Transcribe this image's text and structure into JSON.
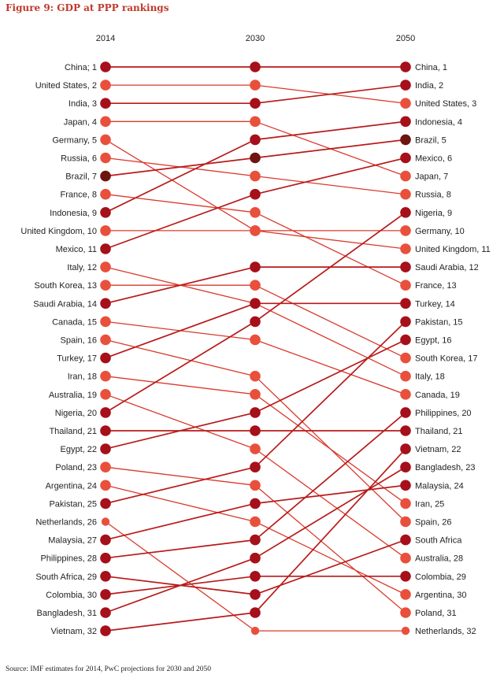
{
  "title": "Figure 9: GDP at PPP rankings",
  "source": "Source: IMF estimates for 2014, PwC projections for 2030 and 2050",
  "colors": {
    "title": "#c0392b",
    "light": "#e8503c",
    "dark": "#a5101a",
    "darker": "#6e1510",
    "line": "#b81a1a",
    "line_light": "#d93a2c"
  },
  "chart_data": {
    "type": "slope",
    "columns": [
      "2014",
      "2030",
      "2050"
    ],
    "series": [
      {
        "name": "China",
        "r2014": 1,
        "r2030": 1,
        "r2050": 1,
        "label2014": "China; 1",
        "label2050": "China, 1",
        "shade": "dark"
      },
      {
        "name": "United States",
        "r2014": 2,
        "r2030": 2,
        "r2050": 3,
        "label2014": "United States, 2",
        "label2050": "United States, 3",
        "shade": "light"
      },
      {
        "name": "India",
        "r2014": 3,
        "r2030": 3,
        "r2050": 2,
        "label2014": "India, 3",
        "label2050": "India, 2",
        "shade": "dark"
      },
      {
        "name": "Japan",
        "r2014": 4,
        "r2030": 4,
        "r2050": 7,
        "label2014": "Japan, 4",
        "label2050": "Japan, 7",
        "shade": "light"
      },
      {
        "name": "Germany",
        "r2014": 5,
        "r2030": 10,
        "r2050": 10,
        "label2014": "Germany, 5",
        "label2050": "Germany, 10",
        "shade": "light"
      },
      {
        "name": "Russia",
        "r2014": 6,
        "r2030": 7,
        "r2050": 8,
        "label2014": "Russia, 6",
        "label2050": "Russia, 8",
        "shade": "light"
      },
      {
        "name": "Brazil",
        "r2014": 7,
        "r2030": 6,
        "r2050": 5,
        "label2014": "Brazil, 7",
        "label2050": "Brazil, 5",
        "shade": "darker"
      },
      {
        "name": "France",
        "r2014": 8,
        "r2030": 9,
        "r2050": 13,
        "label2014": "France, 8",
        "label2050": "France, 13",
        "shade": "light"
      },
      {
        "name": "Indonesia",
        "r2014": 9,
        "r2030": 5,
        "r2050": 4,
        "label2014": "Indonesia, 9",
        "label2050": "Indonesia, 4",
        "shade": "dark"
      },
      {
        "name": "United Kingdom",
        "r2014": 10,
        "r2030": 10,
        "r2050": 11,
        "label2014": "United Kingdom, 10",
        "label2050": "United Kingdom, 11",
        "shade": "light"
      },
      {
        "name": "Mexico",
        "r2014": 11,
        "r2030": 8,
        "r2050": 6,
        "label2014": "Mexico, 11",
        "label2050": "Mexico, 6",
        "shade": "dark"
      },
      {
        "name": "Italy",
        "r2014": 12,
        "r2030": 14,
        "r2050": 18,
        "label2014": "Italy, 12",
        "label2050": "Italy, 18",
        "shade": "light"
      },
      {
        "name": "South Korea",
        "r2014": 13,
        "r2030": 13,
        "r2050": 17,
        "label2014": "South Korea, 13",
        "label2050": "South Korea, 17",
        "shade": "light"
      },
      {
        "name": "Saudi Arabia",
        "r2014": 14,
        "r2030": 12,
        "r2050": 12,
        "label2014": "Saudi Arabia, 14",
        "label2050": "Saudi Arabia, 12",
        "shade": "dark"
      },
      {
        "name": "Canada",
        "r2014": 15,
        "r2030": 16,
        "r2050": 19,
        "label2014": "Canada, 15",
        "label2050": "Canada, 19",
        "shade": "light"
      },
      {
        "name": "Spain",
        "r2014": 16,
        "r2030": 18,
        "r2050": 26,
        "label2014": "Spain, 16",
        "label2050": "Spain, 26",
        "shade": "light"
      },
      {
        "name": "Turkey",
        "r2014": 17,
        "r2030": 14,
        "r2050": 14,
        "label2014": "Turkey, 17",
        "label2050": "Turkey, 14",
        "shade": "dark"
      },
      {
        "name": "Iran",
        "r2014": 18,
        "r2030": 19,
        "r2050": 25,
        "label2014": "Iran, 18",
        "label2050": "Iran, 25",
        "shade": "light"
      },
      {
        "name": "Australia",
        "r2014": 19,
        "r2030": 22,
        "r2050": 28,
        "label2014": "Australia, 19",
        "label2050": "Australia, 28",
        "shade": "light"
      },
      {
        "name": "Nigeria",
        "r2014": 20,
        "r2030": 15,
        "r2050": 9,
        "label2014": "Nigeria, 20",
        "label2050": "Nigeria, 9",
        "shade": "dark"
      },
      {
        "name": "Thailand",
        "r2014": 21,
        "r2030": 21,
        "r2050": 21,
        "label2014": "Thailand, 21",
        "label2050": "Thailand, 21",
        "shade": "dark"
      },
      {
        "name": "Egypt",
        "r2014": 22,
        "r2030": 20,
        "r2050": 16,
        "label2014": "Egypt, 22",
        "label2050": "Egypt, 16",
        "shade": "dark"
      },
      {
        "name": "Poland",
        "r2014": 23,
        "r2030": 24,
        "r2050": 31,
        "label2014": "Poland, 23",
        "label2050": "Poland, 31",
        "shade": "light"
      },
      {
        "name": "Argentina",
        "r2014": 24,
        "r2030": 26,
        "r2050": 30,
        "label2014": "Argentina, 24",
        "label2050": "Argentina, 30",
        "shade": "light"
      },
      {
        "name": "Pakistan",
        "r2014": 25,
        "r2030": 23,
        "r2050": 15,
        "label2014": "Pakistan, 25",
        "label2050": "Pakistan, 15",
        "shade": "dark"
      },
      {
        "name": "Netherlands",
        "r2014": 26,
        "r2030": 32,
        "r2050": 32,
        "label2014": "Netherlands, 26",
        "label2050": "Netherlands, 32",
        "shade": "light"
      },
      {
        "name": "Malaysia",
        "r2014": 27,
        "r2030": 25,
        "r2050": 24,
        "label2014": "Malaysia, 27",
        "label2050": "Malaysia, 24",
        "shade": "dark"
      },
      {
        "name": "Philippines",
        "r2014": 28,
        "r2030": 27,
        "r2050": 20,
        "label2014": "Philippines, 28",
        "label2050": "Philippines, 20",
        "shade": "dark"
      },
      {
        "name": "South Africa",
        "r2014": 29,
        "r2030": 30,
        "r2050": 27,
        "label2014": "South Africa, 29",
        "label2050": "South Africa",
        "shade": "dark"
      },
      {
        "name": "Colombia",
        "r2014": 30,
        "r2030": 29,
        "r2050": 29,
        "label2014": "Colombia, 30",
        "label2050": "Colombia, 29",
        "shade": "dark"
      },
      {
        "name": "Bangladesh",
        "r2014": 31,
        "r2030": 28,
        "r2050": 23,
        "label2014": "Bangladesh, 31",
        "label2050": "Bangladesh, 23",
        "shade": "dark"
      },
      {
        "name": "Vietnam",
        "r2014": 32,
        "r2030": 31,
        "r2050": 22,
        "label2014": "Vietnam, 32",
        "label2050": "Vietnam, 22",
        "shade": "dark"
      }
    ]
  }
}
